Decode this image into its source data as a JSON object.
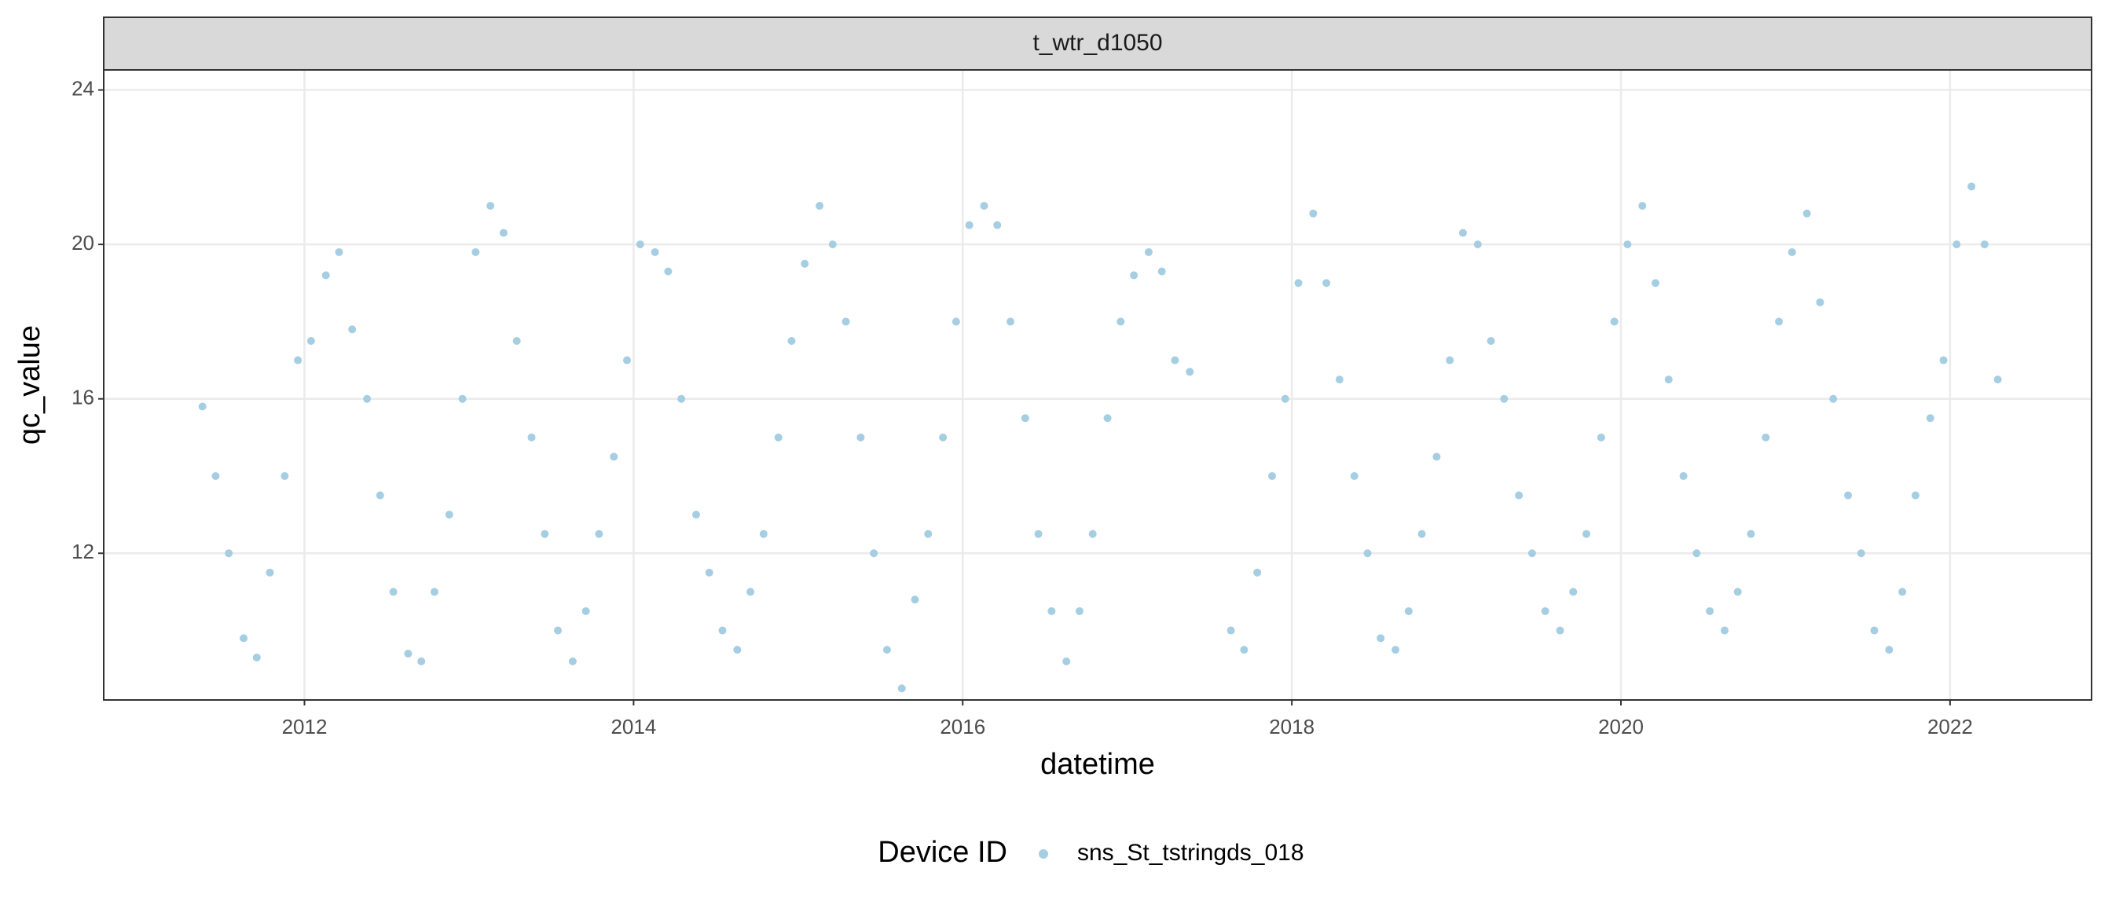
{
  "chart_data": {
    "type": "scatter",
    "strip_title": "t_wtr_d1050",
    "x_label": "datetime",
    "y_label": "qc_value",
    "xlim": [
      2010.78,
      2022.86
    ],
    "xticks": [
      2012,
      2014,
      2016,
      2018,
      2020,
      2022
    ],
    "ylim": [
      8.2,
      24.52
    ],
    "yticks": [
      12,
      16,
      20,
      24
    ],
    "grid": true,
    "legend_title": "Device ID",
    "legend_position": "bottom",
    "series": [
      {
        "name": "sns_St_tstringds_018",
        "color": "#a6cee3",
        "x": [
          2011.38,
          2011.46,
          2011.54,
          2011.63,
          2011.71,
          2011.79,
          2011.88,
          2011.96,
          2012.04,
          2012.13,
          2012.21,
          2012.29,
          2012.38,
          2012.46,
          2012.54,
          2012.63,
          2012.71,
          2012.79,
          2012.88,
          2012.96,
          2013.04,
          2013.13,
          2013.21,
          2013.29,
          2013.38,
          2013.46,
          2013.54,
          2013.63,
          2013.71,
          2013.79,
          2013.88,
          2013.96,
          2014.04,
          2014.13,
          2014.21,
          2014.29,
          2014.38,
          2014.46,
          2014.54,
          2014.63,
          2014.71,
          2014.79,
          2014.88,
          2014.96,
          2015.04,
          2015.13,
          2015.21,
          2015.29,
          2015.38,
          2015.46,
          2015.54,
          2015.63,
          2015.71,
          2015.79,
          2015.88,
          2015.96,
          2016.04,
          2016.13,
          2016.21,
          2016.29,
          2016.38,
          2016.46,
          2016.54,
          2016.63,
          2016.71,
          2016.79,
          2016.88,
          2016.96,
          2017.04,
          2017.13,
          2017.21,
          2017.29,
          2017.38,
          2017.63,
          2017.71,
          2017.79,
          2017.88,
          2017.96,
          2018.04,
          2018.13,
          2018.21,
          2018.29,
          2018.38,
          2018.46,
          2018.54,
          2018.63,
          2018.71,
          2018.79,
          2018.88,
          2018.96,
          2019.04,
          2019.13,
          2019.21,
          2019.29,
          2019.38,
          2019.46,
          2019.54,
          2019.63,
          2019.71,
          2019.79,
          2019.88,
          2019.96,
          2020.04,
          2020.13,
          2020.21,
          2020.29,
          2020.38,
          2020.46,
          2020.54,
          2020.63,
          2020.71,
          2020.79,
          2020.88,
          2020.96,
          2021.04,
          2021.13,
          2021.21,
          2021.29,
          2021.38,
          2021.46,
          2021.54,
          2021.63,
          2021.71,
          2021.79,
          2021.88,
          2021.96,
          2022.04,
          2022.13,
          2022.21,
          2022.29
        ],
        "values": [
          15.8,
          14.0,
          12.0,
          9.8,
          9.3,
          11.5,
          14.0,
          17.0,
          17.5,
          19.2,
          19.8,
          17.8,
          16.0,
          13.5,
          11.0,
          9.4,
          9.2,
          11.0,
          13.0,
          16.0,
          19.8,
          21.0,
          20.3,
          17.5,
          15.0,
          12.5,
          10.0,
          9.2,
          10.5,
          12.5,
          14.5,
          17.0,
          20.0,
          19.8,
          19.3,
          16.0,
          13.0,
          11.5,
          10.0,
          9.5,
          11.0,
          12.5,
          15.0,
          17.5,
          19.5,
          21.0,
          20.0,
          18.0,
          15.0,
          12.0,
          9.5,
          8.5,
          10.8,
          12.5,
          15.0,
          18.0,
          20.5,
          21.0,
          20.5,
          18.0,
          15.5,
          12.5,
          10.5,
          9.2,
          10.5,
          12.5,
          15.5,
          18.0,
          19.2,
          19.8,
          19.3,
          17.0,
          16.7,
          10.0,
          9.5,
          11.5,
          14.0,
          16.0,
          19.0,
          20.8,
          19.0,
          16.5,
          14.0,
          12.0,
          9.8,
          9.5,
          10.5,
          12.5,
          14.5,
          17.0,
          20.3,
          20.0,
          17.5,
          16.0,
          13.5,
          12.0,
          10.5,
          10.0,
          11.0,
          12.5,
          15.0,
          18.0,
          20.0,
          21.0,
          19.0,
          16.5,
          14.0,
          12.0,
          10.5,
          10.0,
          11.0,
          12.5,
          15.0,
          18.0,
          19.8,
          20.8,
          18.5,
          16.0,
          13.5,
          12.0,
          10.0,
          9.5,
          11.0,
          13.5,
          15.5,
          17.0,
          20.0,
          21.5,
          20.0,
          16.5
        ]
      }
    ]
  }
}
